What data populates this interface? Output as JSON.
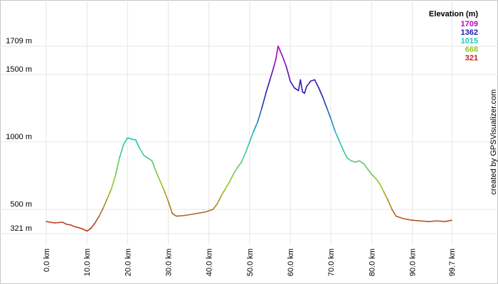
{
  "chart_data": {
    "type": "line",
    "title": "",
    "xlabel": "",
    "ylabel": "",
    "x_unit": "km",
    "y_unit": "m",
    "xlim": [
      0.0,
      99.7
    ],
    "ylim": [
      321,
      1709
    ],
    "x_ticks": [
      "0.0 km",
      "10.0 km",
      "20.0 km",
      "30.0 km",
      "40.0 km",
      "50.0 km",
      "60.0 km",
      "70.0 km",
      "80.0 km",
      "90.0 km",
      "99.7 km"
    ],
    "y_ticks": [
      "1709 m",
      "1500 m",
      "1000 m",
      "500 m",
      "321 m"
    ],
    "grid": true,
    "legend": {
      "title": "Elevation (m)",
      "placement": "top-right",
      "entries": [
        {
          "label": "1709",
          "color": "#c000c0"
        },
        {
          "label": "1362",
          "color": "#1a1ab4"
        },
        {
          "label": "1015",
          "color": "#1ec8b4"
        },
        {
          "label": "668",
          "color": "#96c81e"
        },
        {
          "label": "321",
          "color": "#c81e1e"
        }
      ]
    },
    "credit": "created by GPSVisualizer.com",
    "series": [
      {
        "x": [
          0,
          2,
          4,
          5,
          6,
          7,
          8,
          9,
          10,
          11,
          12,
          13,
          14,
          15,
          16,
          17,
          18,
          19,
          20,
          21,
          22,
          23,
          24,
          25,
          26,
          27,
          28,
          29,
          30,
          31,
          32,
          34,
          36,
          38,
          39,
          40,
          41,
          42,
          43,
          44,
          45,
          46,
          47,
          48,
          49,
          50,
          51,
          52,
          53,
          54,
          55,
          56,
          56.5,
          57,
          58,
          59,
          60,
          61,
          62,
          62.5,
          63,
          63.5,
          64,
          65,
          66,
          67,
          68,
          69,
          70,
          71,
          72,
          73,
          74,
          75,
          76,
          77,
          78,
          79,
          80,
          81,
          82,
          83,
          84,
          85,
          86,
          88,
          90,
          92,
          94,
          96,
          98,
          99.7
        ],
        "y": [
          410,
          400,
          405,
          390,
          385,
          372,
          365,
          355,
          340,
          360,
          400,
          450,
          510,
          580,
          650,
          750,
          880,
          980,
          1030,
          1020,
          1015,
          950,
          900,
          880,
          860,
          780,
          710,
          640,
          560,
          470,
          450,
          455,
          465,
          475,
          480,
          490,
          500,
          540,
          600,
          650,
          700,
          760,
          810,
          850,
          920,
          1000,
          1080,
          1150,
          1250,
          1360,
          1460,
          1560,
          1620,
          1709,
          1640,
          1560,
          1450,
          1400,
          1380,
          1460,
          1370,
          1360,
          1410,
          1450,
          1460,
          1400,
          1330,
          1250,
          1170,
          1080,
          1010,
          940,
          880,
          860,
          850,
          860,
          840,
          800,
          760,
          730,
          690,
          630,
          570,
          500,
          450,
          430,
          420,
          415,
          410,
          415,
          410,
          420
        ]
      }
    ]
  }
}
